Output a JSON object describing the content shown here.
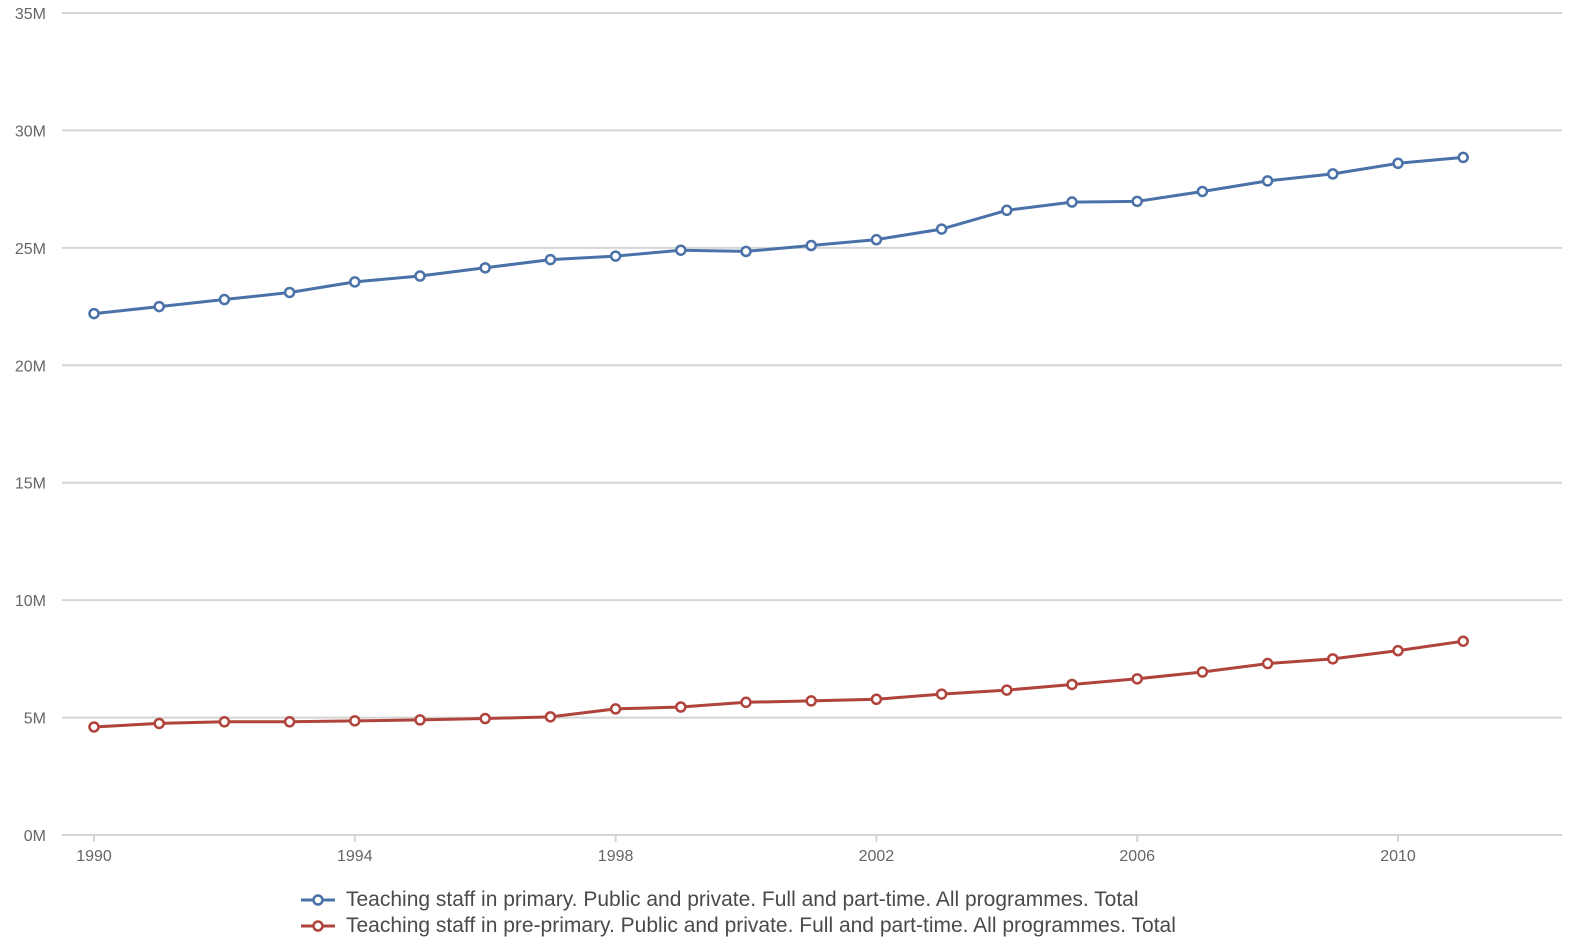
{
  "chart_data": {
    "type": "line",
    "title": "",
    "xlabel": "",
    "ylabel": "",
    "x": [
      1990,
      1991,
      1992,
      1993,
      1994,
      1995,
      1996,
      1997,
      1998,
      1999,
      2000,
      2001,
      2002,
      2003,
      2004,
      2005,
      2006,
      2007,
      2008,
      2009,
      2010,
      2011
    ],
    "xlim": [
      1990,
      2012
    ],
    "ylim": [
      0,
      35000000
    ],
    "x_ticks": [
      1990,
      1994,
      1998,
      2002,
      2006,
      2010
    ],
    "x_tick_labels": [
      "1990",
      "1994",
      "1998",
      "2002",
      "2006",
      "2010"
    ],
    "y_ticks": [
      0,
      5000000,
      10000000,
      15000000,
      20000000,
      25000000,
      30000000,
      35000000
    ],
    "y_tick_labels": [
      "0M",
      "5M",
      "10M",
      "15M",
      "20M",
      "25M",
      "30M",
      "35M"
    ],
    "grid": true,
    "legend_position": "bottom",
    "series": [
      {
        "name": "Teaching staff in primary. Public and private. Full and part-time. All programmes. Total",
        "color": "#4a72a8",
        "values": [
          22200000,
          22500000,
          22800000,
          23100000,
          23550000,
          23800000,
          24150000,
          24500000,
          24650000,
          24900000,
          24850000,
          25100000,
          25350000,
          25800000,
          26600000,
          26950000,
          26980000,
          27400000,
          27850000,
          28150000,
          28600000,
          28850000
        ]
      },
      {
        "name": "Teaching staff in pre-primary. Public and private. Full and part-time. All programmes. Total",
        "color": "#b0443c",
        "values": [
          4600000,
          4750000,
          4820000,
          4820000,
          4860000,
          4900000,
          4960000,
          5030000,
          5370000,
          5450000,
          5650000,
          5710000,
          5780000,
          6000000,
          6170000,
          6410000,
          6650000,
          6940000,
          7300000,
          7500000,
          7850000,
          8250000
        ]
      }
    ]
  }
}
